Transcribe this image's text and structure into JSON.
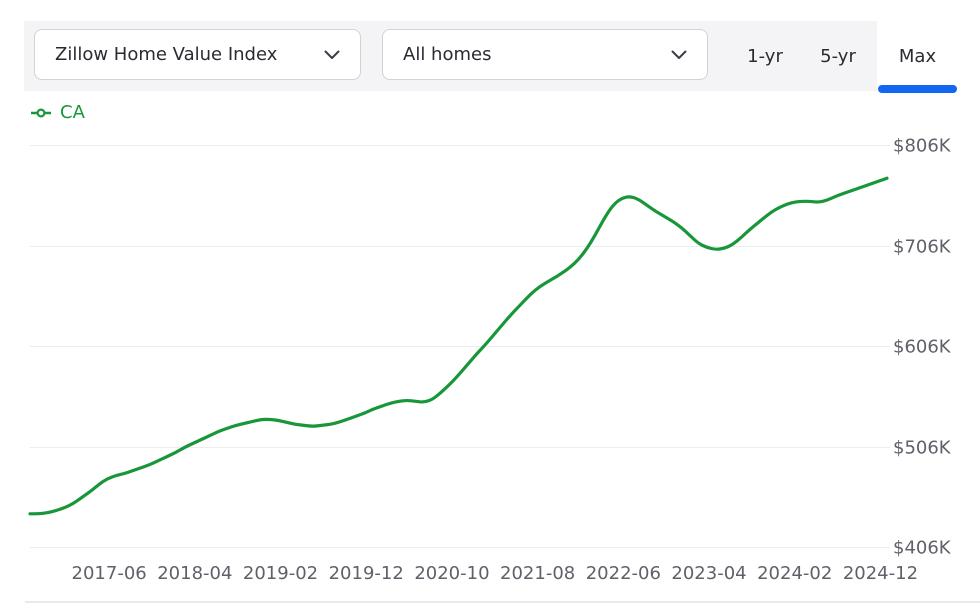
{
  "toolbar": {
    "metric_dropdown": {
      "value": "Zillow Home Value Index"
    },
    "segment_dropdown": {
      "value": "All homes"
    },
    "range_tabs": [
      {
        "label": "1-yr",
        "active": false
      },
      {
        "label": "5-yr",
        "active": false
      },
      {
        "label": "Max",
        "active": true
      }
    ]
  },
  "legend": {
    "series_label": "CA"
  },
  "colors": {
    "line_green": "#18963a",
    "accent_blue": "#1266f1",
    "axis_text": "#60606a",
    "grid": "#ededf0",
    "toolbar_bg": "#f4f4f6",
    "text_dark": "#2a2a33"
  },
  "chart_data": {
    "type": "line",
    "legend_position": "top-left",
    "grid": "horizontal",
    "y_axis": {
      "unit": "USD thousands",
      "ticks": [
        {
          "label": "$806K",
          "value": 806
        },
        {
          "label": "$706K",
          "value": 706
        },
        {
          "label": "$606K",
          "value": 606
        },
        {
          "label": "$506K",
          "value": 506
        },
        {
          "label": "$406K",
          "value": 406
        }
      ]
    },
    "x_axis": {
      "interval": "monthly",
      "start": "2016-09",
      "end": "2025-01",
      "ticks": [
        {
          "label": "2017-06",
          "index": 9
        },
        {
          "label": "2018-04",
          "index": 19
        },
        {
          "label": "2019-02",
          "index": 29
        },
        {
          "label": "2019-12",
          "index": 39
        },
        {
          "label": "2020-10",
          "index": 49
        },
        {
          "label": "2021-08",
          "index": 59
        },
        {
          "label": "2022-06",
          "index": 69
        },
        {
          "label": "2023-04",
          "index": 79
        },
        {
          "label": "2024-02",
          "index": 89
        },
        {
          "label": "2024-12",
          "index": 99
        }
      ]
    },
    "series": [
      {
        "name": "CA",
        "color": "#18963a",
        "start": "2016-09",
        "interval": "monthly",
        "values": [
          439,
          439,
          440,
          442,
          445,
          449,
          455,
          461,
          468,
          474,
          477,
          479,
          482,
          485,
          488,
          492,
          496,
          500,
          505,
          509,
          513,
          517,
          521,
          524,
          527,
          529,
          531,
          533,
          533,
          532,
          530,
          528,
          527,
          526,
          527,
          528,
          530,
          533,
          536,
          539,
          543,
          546,
          549,
          551,
          552,
          551,
          550,
          553,
          560,
          568,
          577,
          587,
          597,
          606,
          616,
          626,
          636,
          645,
          654,
          662,
          668,
          673,
          678,
          684,
          692,
          703,
          717,
          733,
          746,
          753,
          755,
          752,
          746,
          740,
          735,
          730,
          724,
          716,
          708,
          704,
          702,
          703,
          707,
          714,
          722,
          729,
          736,
          742,
          746,
          749,
          750,
          750,
          749,
          751,
          755,
          758,
          761,
          764,
          767,
          770,
          773
        ]
      }
    ]
  }
}
